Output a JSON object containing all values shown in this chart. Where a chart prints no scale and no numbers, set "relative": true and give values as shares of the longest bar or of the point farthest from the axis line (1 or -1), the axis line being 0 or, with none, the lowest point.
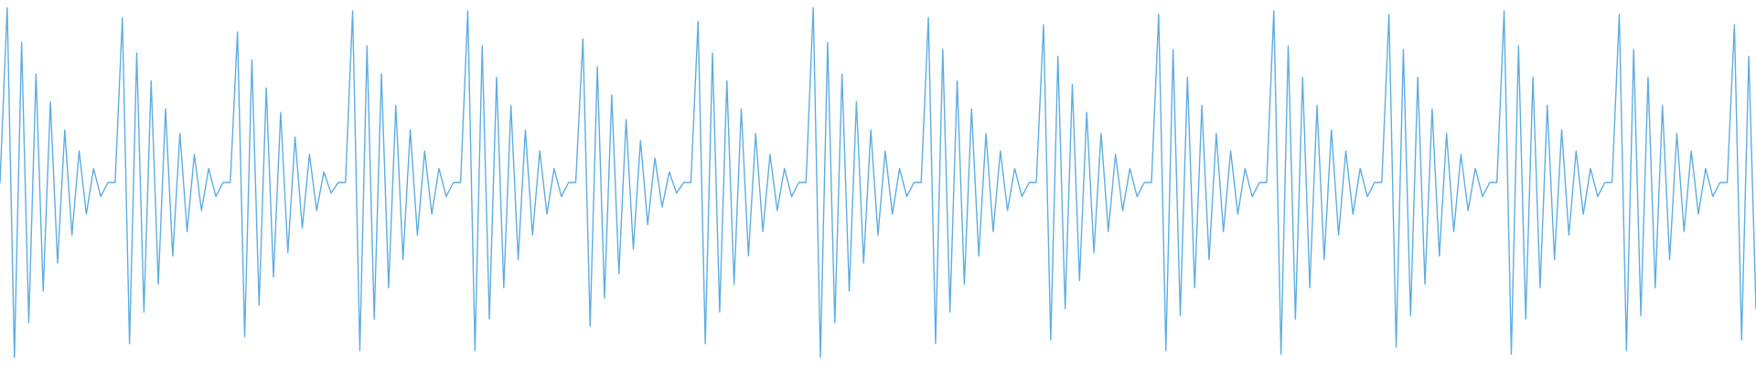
{
  "chart_data": {
    "type": "line",
    "relative": true,
    "categories": [
      null,
      null,
      null,
      null,
      null,
      null,
      null,
      null,
      null,
      null,
      null,
      null,
      null,
      null,
      null,
      null,
      null,
      null,
      null,
      null,
      null,
      null,
      null,
      null,
      null,
      null,
      null,
      null,
      null,
      null,
      null,
      null,
      null,
      null,
      null,
      null,
      null,
      null,
      null,
      null,
      null,
      null,
      null,
      null,
      null,
      null,
      null,
      null,
      null,
      null,
      null,
      null,
      null,
      null,
      null,
      null,
      null,
      null,
      null,
      null,
      null,
      null,
      null,
      null,
      null,
      null,
      null,
      null,
      null,
      null,
      null,
      null,
      null,
      null,
      null,
      null,
      null,
      null,
      null,
      null,
      null,
      null,
      null,
      null,
      null,
      null,
      null,
      null,
      null,
      null,
      null,
      null,
      null,
      null,
      null,
      null,
      null,
      null,
      null,
      null,
      null,
      null,
      null,
      null,
      null,
      null,
      null,
      null,
      null,
      null,
      null,
      null,
      null,
      null,
      null,
      null,
      null,
      null,
      null,
      null,
      null,
      null,
      null,
      null,
      null,
      null,
      null,
      null,
      null,
      null,
      null,
      null,
      null,
      null,
      null,
      null,
      null,
      null,
      null,
      null,
      null,
      null,
      null,
      null,
      null,
      null,
      null,
      null,
      null,
      null,
      null,
      null,
      null,
      null,
      null,
      null,
      null,
      null,
      null,
      null,
      null,
      null,
      null,
      null,
      null,
      null,
      null,
      null,
      null,
      null,
      null,
      null,
      null,
      null,
      null,
      null,
      null,
      null,
      null,
      null,
      null,
      null,
      null,
      null,
      null,
      null,
      null,
      null,
      null,
      null,
      null,
      null,
      null,
      null,
      null,
      null,
      null,
      null,
      null,
      null,
      null,
      null,
      null,
      null,
      null,
      null,
      null,
      null,
      null,
      null,
      null,
      null,
      null,
      null,
      null,
      null,
      null,
      null,
      null,
      null,
      null,
      null,
      null,
      null,
      null,
      null,
      null,
      null,
      null,
      null,
      null,
      null,
      null,
      null,
      null,
      null,
      null,
      null,
      null,
      null,
      null,
      null,
      null,
      null,
      null
    ],
    "series": [
      {
        "color": "#5dade2",
        "values": [
          0.5,
          1.0,
          0.0,
          0.9,
          0.1,
          0.81,
          0.19,
          0.73,
          0.27,
          0.65,
          0.35,
          0.59,
          0.41,
          0.54,
          0.46,
          0.5,
          0.5,
          0.97,
          0.04,
          0.87,
          0.13,
          0.79,
          0.21,
          0.71,
          0.29,
          0.64,
          0.36,
          0.58,
          0.42,
          0.54,
          0.46,
          0.5,
          0.5,
          0.93,
          0.06,
          0.85,
          0.15,
          0.77,
          0.23,
          0.7,
          0.3,
          0.63,
          0.37,
          0.58,
          0.42,
          0.53,
          0.47,
          0.5,
          0.5,
          0.99,
          0.02,
          0.89,
          0.11,
          0.81,
          0.2,
          0.72,
          0.28,
          0.65,
          0.35,
          0.59,
          0.41,
          0.54,
          0.46,
          0.5,
          0.5,
          0.99,
          0.02,
          0.89,
          0.11,
          0.8,
          0.2,
          0.72,
          0.28,
          0.65,
          0.35,
          0.59,
          0.41,
          0.54,
          0.46,
          0.5,
          0.5,
          0.91,
          0.09,
          0.83,
          0.17,
          0.75,
          0.24,
          0.68,
          0.31,
          0.62,
          0.38,
          0.57,
          0.43,
          0.53,
          0.47,
          0.5,
          0.5,
          0.96,
          0.04,
          0.87,
          0.13,
          0.79,
          0.21,
          0.71,
          0.29,
          0.64,
          0.36,
          0.58,
          0.42,
          0.54,
          0.46,
          0.5,
          0.5,
          1.0,
          0.0,
          0.9,
          0.1,
          0.81,
          0.19,
          0.73,
          0.27,
          0.65,
          0.35,
          0.59,
          0.41,
          0.54,
          0.46,
          0.5,
          0.5,
          0.97,
          0.04,
          0.88,
          0.13,
          0.79,
          0.21,
          0.71,
          0.29,
          0.64,
          0.36,
          0.59,
          0.42,
          0.54,
          0.46,
          0.5,
          0.5,
          0.95,
          0.05,
          0.86,
          0.14,
          0.78,
          0.22,
          0.7,
          0.3,
          0.64,
          0.36,
          0.58,
          0.42,
          0.54,
          0.46,
          0.5,
          0.5,
          0.98,
          0.02,
          0.88,
          0.12,
          0.8,
          0.2,
          0.72,
          0.28,
          0.64,
          0.36,
          0.59,
          0.41,
          0.54,
          0.46,
          0.5,
          0.5,
          0.99,
          0.01,
          0.89,
          0.11,
          0.8,
          0.2,
          0.72,
          0.28,
          0.65,
          0.35,
          0.59,
          0.41,
          0.54,
          0.46,
          0.5,
          0.5,
          0.98,
          0.03,
          0.88,
          0.12,
          0.8,
          0.21,
          0.71,
          0.29,
          0.64,
          0.36,
          0.58,
          0.42,
          0.54,
          0.46,
          0.5,
          0.5,
          0.99,
          0.01,
          0.89,
          0.11,
          0.8,
          0.2,
          0.72,
          0.28,
          0.65,
          0.35,
          0.59,
          0.41,
          0.54,
          0.46,
          0.5,
          0.5,
          0.98,
          0.02,
          0.88,
          0.12,
          0.8,
          0.2,
          0.72,
          0.28,
          0.64,
          0.36,
          0.59,
          0.41,
          0.54,
          0.46,
          0.5,
          0.5,
          0.95,
          0.05,
          0.86,
          0.14
        ]
      }
    ]
  }
}
